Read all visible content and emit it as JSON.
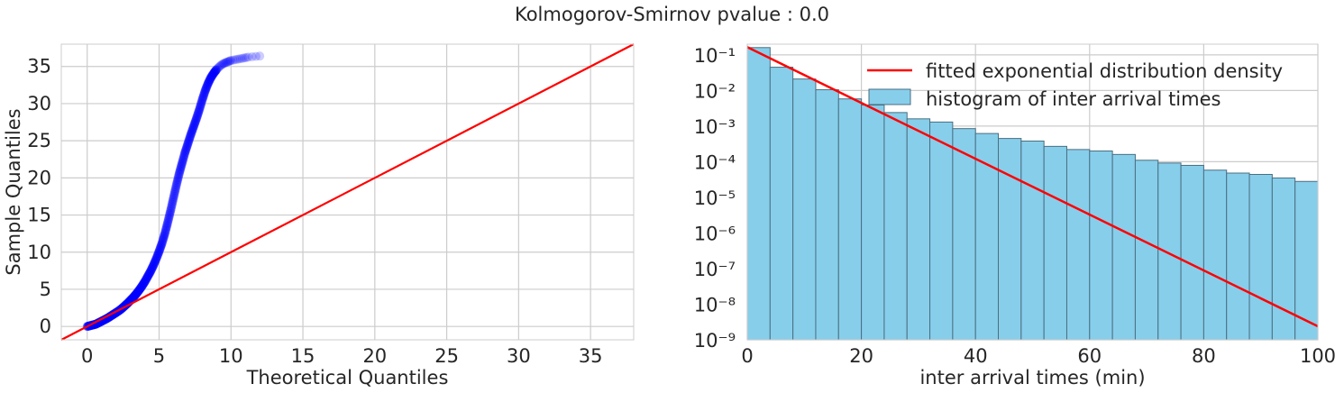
{
  "figure": {
    "title": "Kolmogorov-Smirnov pvalue : 0.0"
  },
  "chart_data": [
    {
      "type": "scatter",
      "xlabel": "Theoretical Quantiles",
      "ylabel": "Sample Quantiles",
      "xlim": [
        -1.8,
        38
      ],
      "ylim": [
        -1.8,
        38
      ],
      "xticks": [
        0,
        5,
        10,
        15,
        20,
        25,
        30,
        35
      ],
      "yticks": [
        0,
        5,
        10,
        15,
        20,
        25,
        30,
        35
      ],
      "grid": true,
      "point_color": "#0000ff",
      "line_color": "#ff0000",
      "reference_line": {
        "x": [
          -1.8,
          38
        ],
        "y": [
          -1.8,
          38
        ]
      },
      "qq_points": {
        "x": [
          0,
          0.2,
          0.4,
          0.6,
          0.8,
          1.0,
          1.2,
          1.4,
          1.6,
          1.8,
          2.0,
          2.2,
          2.4,
          2.6,
          2.8,
          3.0,
          3.2,
          3.4,
          3.6,
          3.8,
          4.0,
          4.2,
          4.4,
          4.6,
          4.8,
          5.0,
          5.2,
          5.4,
          5.6,
          5.8,
          6.0,
          6.2,
          6.4,
          6.6,
          6.8,
          7.0,
          7.2,
          7.4,
          7.6,
          7.8,
          8.0,
          8.2,
          8.4,
          8.6,
          8.8,
          9.0,
          9.2,
          9.4,
          9.6,
          9.8,
          10.0,
          10.4,
          10.8,
          11.2,
          12.0
        ],
        "y": [
          0,
          0.1,
          0.2,
          0.3,
          0.5,
          0.7,
          0.9,
          1.1,
          1.35,
          1.6,
          1.85,
          2.1,
          2.4,
          2.75,
          3.1,
          3.5,
          3.9,
          4.35,
          4.85,
          5.4,
          6.0,
          6.7,
          7.4,
          8.2,
          9.1,
          10.1,
          11.2,
          12.5,
          14.0,
          15.6,
          17.3,
          19.0,
          20.6,
          22.0,
          23.4,
          24.6,
          25.8,
          26.9,
          28.0,
          29.2,
          30.5,
          31.7,
          32.7,
          33.5,
          34.1,
          34.6,
          35.0,
          35.3,
          35.5,
          35.65,
          35.8,
          35.95,
          36.1,
          36.25,
          36.4
        ]
      }
    },
    {
      "type": "bar",
      "subtype": "histogram",
      "xlabel": "inter arrival times (min)",
      "ylabel": "",
      "xlim": [
        0,
        100
      ],
      "ylim_log10": [
        -9,
        -0.7
      ],
      "yscale": "log",
      "xticks": [
        0,
        20,
        40,
        60,
        80,
        100
      ],
      "yticks": [
        "10⁻¹",
        "10⁻²",
        "10⁻³",
        "10⁻⁴",
        "10⁻⁵",
        "10⁻⁶",
        "10⁻⁷",
        "10⁻⁸",
        "10⁻⁹"
      ],
      "grid": true,
      "bar_color": "#87ceeb",
      "bar_edge_color": "#4a6f80",
      "line_color": "#ff0000",
      "legend_position": "top-right",
      "legend": [
        {
          "label": "fitted exponential distribution density",
          "kind": "line"
        },
        {
          "label": "histogram of inter arrival times",
          "kind": "patch"
        }
      ],
      "bin_edges": [
        0,
        4,
        8,
        12,
        16,
        20,
        24,
        28,
        32,
        36,
        40,
        44,
        48,
        52,
        56,
        60,
        64,
        68,
        72,
        76,
        80,
        84,
        88,
        92,
        96,
        100
      ],
      "values": [
        0.16,
        0.045,
        0.021,
        0.0105,
        0.0058,
        0.0039,
        0.0024,
        0.0016,
        0.0013,
        0.00085,
        0.00062,
        0.00045,
        0.00038,
        0.00027,
        0.00022,
        0.0002,
        0.00016,
        0.00011,
        9.2e-05,
        7.9e-05,
        5.8e-05,
        4.8e-05,
        4.4e-05,
        3.5e-05,
        2.8e-05
      ],
      "fitted_line": {
        "x": [
          0,
          100
        ],
        "y": [
          0.165,
          2.4e-09
        ]
      }
    }
  ]
}
